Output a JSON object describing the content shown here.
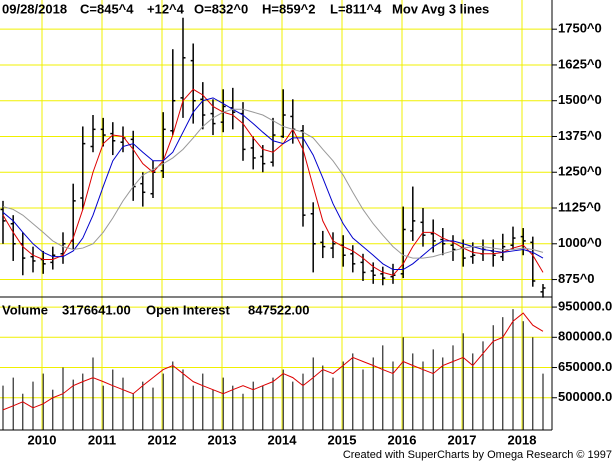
{
  "chart_data": [
    {
      "type": "ohlc",
      "header": {
        "date": "09/28/2018",
        "close": "C=845^4",
        "change": "+12^4",
        "open": "O=832^0",
        "high": "H=859^2",
        "low": "L=811^4",
        "study": "Mov Avg 3 lines"
      },
      "change_color": "#00cc00",
      "x": [
        2009.35,
        2009.52,
        2009.68,
        2009.85,
        2010.02,
        2010.18,
        2010.35,
        2010.52,
        2010.68,
        2010.85,
        2011.02,
        2011.18,
        2011.35,
        2011.52,
        2011.68,
        2011.85,
        2012.02,
        2012.18,
        2012.35,
        2012.52,
        2012.68,
        2012.85,
        2013.02,
        2013.18,
        2013.35,
        2013.52,
        2013.68,
        2013.85,
        2014.02,
        2014.18,
        2014.35,
        2014.52,
        2014.68,
        2014.85,
        2015.02,
        2015.18,
        2015.35,
        2015.52,
        2015.68,
        2015.85,
        2016.02,
        2016.18,
        2016.35,
        2016.52,
        2016.68,
        2016.85,
        2017.02,
        2017.18,
        2017.35,
        2017.52,
        2017.68,
        2017.85,
        2018.02,
        2018.18,
        2018.35
      ],
      "open": [
        1120,
        1070,
        1000,
        955,
        945,
        935,
        965,
        1010,
        1160,
        1340,
        1400,
        1385,
        1355,
        1365,
        1210,
        1175,
        1255,
        1395,
        1510,
        1640,
        1505,
        1455,
        1425,
        1475,
        1455,
        1335,
        1305,
        1285,
        1375,
        1445,
        1395,
        1105,
        1005,
        985,
        995,
        965,
        935,
        905,
        895,
        885,
        895,
        1045,
        1075,
        1035,
        1015,
        995,
        985,
        955,
        965,
        975,
        955,
        995,
        1025,
        1005,
        832
      ],
      "high": [
        1150,
        1100,
        1040,
        990,
        975,
        990,
        1040,
        1210,
        1410,
        1450,
        1440,
        1425,
        1410,
        1395,
        1250,
        1290,
        1460,
        1680,
        1790,
        1700,
        1565,
        1505,
        1540,
        1545,
        1495,
        1375,
        1345,
        1440,
        1540,
        1505,
        1415,
        1145,
        1045,
        1040,
        1030,
        995,
        965,
        935,
        920,
        930,
        1130,
        1200,
        1125,
        1085,
        1055,
        1030,
        1015,
        1005,
        1015,
        1015,
        1035,
        1060,
        1055,
        1025,
        859.25
      ],
      "low": [
        1000,
        940,
        890,
        900,
        895,
        910,
        930,
        980,
        1120,
        1320,
        1340,
        1310,
        1320,
        1150,
        1130,
        1160,
        1230,
        1380,
        1440,
        1420,
        1400,
        1380,
        1390,
        1400,
        1290,
        1260,
        1250,
        1270,
        1370,
        1350,
        1060,
        900,
        950,
        950,
        920,
        900,
        870,
        860,
        855,
        860,
        880,
        1010,
        990,
        970,
        960,
        940,
        920,
        930,
        940,
        920,
        940,
        980,
        960,
        850,
        811.5
      ],
      "close": [
        1080,
        1000,
        950,
        940,
        930,
        960,
        1000,
        1150,
        1350,
        1400,
        1380,
        1360,
        1370,
        1200,
        1180,
        1250,
        1400,
        1500,
        1650,
        1500,
        1450,
        1420,
        1480,
        1460,
        1330,
        1300,
        1280,
        1380,
        1450,
        1400,
        1100,
        1000,
        990,
        1000,
        960,
        930,
        900,
        890,
        880,
        890,
        1050,
        1080,
        1030,
        1010,
        1000,
        980,
        950,
        960,
        980,
        960,
        990,
        1020,
        1010,
        870,
        845.5
      ],
      "bar_color": "#000000",
      "series": [
        {
          "color": "#dd0000",
          "values": [
            1100,
            1040,
            990,
            960,
            945,
            945,
            960,
            1020,
            1120,
            1250,
            1350,
            1380,
            1375,
            1330,
            1280,
            1250,
            1290,
            1380,
            1500,
            1540,
            1520,
            1480,
            1460,
            1450,
            1420,
            1370,
            1330,
            1320,
            1350,
            1400,
            1330,
            1200,
            1080,
            1010,
            990,
            975,
            950,
            920,
            900,
            890,
            930,
            990,
            1040,
            1040,
            1020,
            1005,
            985,
            970,
            965,
            965,
            970,
            985,
            995,
            960,
            900
          ]
        },
        {
          "color": "#0000cc",
          "values": [
            1110,
            1080,
            1040,
            1000,
            970,
            955,
            955,
            975,
            1020,
            1100,
            1200,
            1290,
            1340,
            1350,
            1320,
            1290,
            1290,
            1320,
            1390,
            1460,
            1500,
            1510,
            1490,
            1470,
            1450,
            1420,
            1390,
            1360,
            1350,
            1370,
            1370,
            1310,
            1230,
            1140,
            1070,
            1020,
            990,
            960,
            930,
            910,
            910,
            930,
            960,
            990,
            1010,
            1010,
            1000,
            990,
            980,
            975,
            970,
            975,
            980,
            970,
            950
          ]
        },
        {
          "color": "#999999",
          "values": [
            1130,
            1120,
            1100,
            1070,
            1040,
            1010,
            990,
            980,
            985,
            1000,
            1040,
            1090,
            1150,
            1200,
            1240,
            1260,
            1280,
            1300,
            1330,
            1370,
            1410,
            1440,
            1460,
            1470,
            1470,
            1460,
            1450,
            1430,
            1410,
            1400,
            1390,
            1370,
            1330,
            1290,
            1240,
            1180,
            1120,
            1070,
            1030,
            990,
            960,
            950,
            950,
            955,
            965,
            975,
            985,
            990,
            990,
            985,
            980,
            980,
            985,
            980,
            970
          ]
        }
      ],
      "xlim": [
        2009.3,
        2018.5
      ],
      "xticks": [
        {
          "value": 2010,
          "label": "2010"
        },
        {
          "value": 2011,
          "label": "2011"
        },
        {
          "value": 2012,
          "label": "2012"
        },
        {
          "value": 2013,
          "label": "2013"
        },
        {
          "value": 2014,
          "label": "2014"
        },
        {
          "value": 2015,
          "label": "2015"
        },
        {
          "value": 2016,
          "label": "2016"
        },
        {
          "value": 2017,
          "label": "2017"
        },
        {
          "value": 2018,
          "label": "2018"
        }
      ],
      "ylim": [
        814,
        1852
      ],
      "yticks": [
        {
          "value": 875,
          "label": "875^0"
        },
        {
          "value": 1000,
          "label": "1000^0"
        },
        {
          "value": 1125,
          "label": "1125^0"
        },
        {
          "value": 1250,
          "label": "1250^0"
        },
        {
          "value": 1375,
          "label": "1375^0"
        },
        {
          "value": 1500,
          "label": "1500^0"
        },
        {
          "value": 1625,
          "label": "1625^0"
        },
        {
          "value": 1750,
          "label": "1750^0"
        }
      ],
      "grid": true,
      "grid_color": "#f0f000"
    },
    {
      "type": "volume",
      "volume_label": "Volume",
      "volume_value": "3176641.00",
      "oi_label": "Open Interest",
      "oi_value": "847522.00",
      "oi_value_color": "#dd0000",
      "x": [
        2009.35,
        2009.52,
        2009.68,
        2009.85,
        2010.02,
        2010.18,
        2010.35,
        2010.52,
        2010.68,
        2010.85,
        2011.02,
        2011.18,
        2011.35,
        2011.52,
        2011.68,
        2011.85,
        2012.02,
        2012.18,
        2012.35,
        2012.52,
        2012.68,
        2012.85,
        2013.02,
        2013.18,
        2013.35,
        2013.52,
        2013.68,
        2013.85,
        2014.02,
        2014.18,
        2014.35,
        2014.52,
        2014.68,
        2014.85,
        2015.02,
        2015.18,
        2015.35,
        2015.52,
        2015.68,
        2015.85,
        2016.02,
        2016.18,
        2016.35,
        2016.52,
        2016.68,
        2016.85,
        2017.02,
        2017.18,
        2017.35,
        2017.52,
        2017.68,
        2017.85,
        2018.02,
        2018.18,
        2018.35
      ],
      "values": [
        560000,
        600000,
        520000,
        580000,
        620000,
        540000,
        650000,
        590000,
        620000,
        700000,
        560000,
        640000,
        600000,
        520000,
        580000,
        550000,
        620000,
        680000,
        640000,
        560000,
        620000,
        540000,
        600000,
        560000,
        520000,
        580000,
        560000,
        600000,
        640000,
        580000,
        620000,
        700000,
        660000,
        600000,
        680000,
        720000,
        640000,
        700000,
        760000,
        680000,
        800000,
        720000,
        680000,
        740000,
        700000,
        760000,
        820000,
        720000,
        780000,
        860000,
        900000,
        940000,
        880000,
        800000,
        620000
      ],
      "color": "#000000",
      "series": [
        {
          "color": "#dd0000",
          "values": [
            440000,
            460000,
            480000,
            450000,
            470000,
            500000,
            520000,
            560000,
            580000,
            600000,
            580000,
            560000,
            540000,
            520000,
            560000,
            600000,
            640000,
            660000,
            620000,
            580000,
            560000,
            540000,
            520000,
            540000,
            560000,
            540000,
            560000,
            580000,
            620000,
            600000,
            560000,
            600000,
            640000,
            620000,
            660000,
            700000,
            680000,
            660000,
            640000,
            620000,
            680000,
            660000,
            640000,
            620000,
            660000,
            680000,
            700000,
            660000,
            720000,
            780000,
            800000,
            880000,
            920000,
            860000,
            830000
          ]
        }
      ],
      "xlim": [
        2009.3,
        2018.5
      ],
      "ylim": [
        340000,
        1000000
      ],
      "yticks": [
        {
          "value": 500000,
          "label": "500000.0"
        },
        {
          "value": 650000,
          "label": "650000.0"
        },
        {
          "value": 800000,
          "label": "800000.0"
        },
        {
          "value": 950000,
          "label": "950000.0"
        }
      ],
      "grid": true,
      "grid_color": "#f0f000"
    }
  ],
  "footer": "Created with SuperCharts by Omega Research © 1997"
}
